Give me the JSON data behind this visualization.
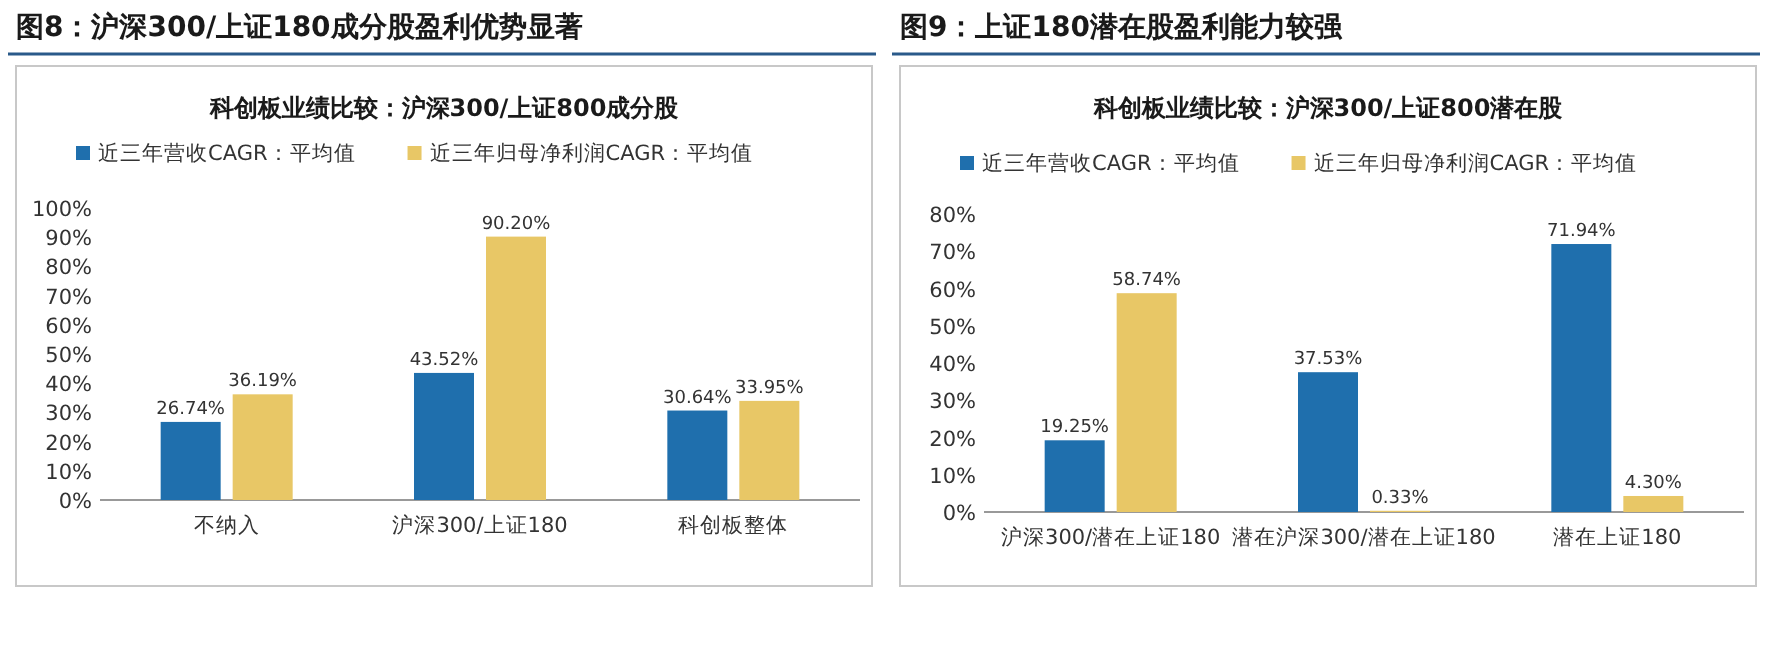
{
  "chart_data": [
    {
      "type": "bar",
      "title": "图8：沪深300/上证180成分股盈利优势显著",
      "subtitle": "科创板业绩比较：沪深300/上证800成分股",
      "categories": [
        "不纳入",
        "沪深300/上证180",
        "科创板整体"
      ],
      "series": [
        {
          "name": "近三年营收CAGR：平均值",
          "color": "#1f6fad",
          "values": [
            26.74,
            43.52,
            30.64
          ],
          "value_labels": [
            "26.74%",
            "43.52%",
            "30.64%"
          ]
        },
        {
          "name": "近三年归母净利润CAGR：平均值",
          "color": "#e8c766",
          "values": [
            36.19,
            90.2,
            33.95
          ],
          "value_labels": [
            "36.19%",
            "90.20%",
            "33.95%"
          ]
        }
      ],
      "ylim": [
        0,
        100
      ],
      "yticks": [
        {
          "value": 0,
          "label": "0%"
        },
        {
          "value": 10,
          "label": "10%"
        },
        {
          "value": 20,
          "label": "20%"
        },
        {
          "value": 30,
          "label": "30%"
        },
        {
          "value": 40,
          "label": "40%"
        },
        {
          "value": 50,
          "label": "50%"
        },
        {
          "value": 60,
          "label": "60%"
        },
        {
          "value": 70,
          "label": "70%"
        },
        {
          "value": 80,
          "label": "80%"
        },
        {
          "value": 90,
          "label": "90%"
        },
        {
          "value": 100,
          "label": "100%"
        }
      ],
      "legend": "top",
      "grid": false
    },
    {
      "type": "bar",
      "title": "图9：上证180潜在股盈利能力较强",
      "subtitle": "科创板业绩比较：沪深300/上证800潜在股",
      "categories": [
        "沪深300/潜在上证180",
        "潜在沪深300/潜在上证180",
        "潜在上证180"
      ],
      "series": [
        {
          "name": "近三年营收CAGR：平均值",
          "color": "#1f6fad",
          "values": [
            19.25,
            37.53,
            71.94
          ],
          "value_labels": [
            "19.25%",
            "37.53%",
            "71.94%"
          ]
        },
        {
          "name": "近三年归母净利润CAGR：平均值",
          "color": "#e8c766",
          "values": [
            58.74,
            0.33,
            4.3
          ],
          "value_labels": [
            "58.74%",
            "0.33%",
            "4.30%"
          ]
        }
      ],
      "ylim": [
        0,
        80
      ],
      "yticks": [
        {
          "value": 0,
          "label": "0%"
        },
        {
          "value": 10,
          "label": "10%"
        },
        {
          "value": 20,
          "label": "20%"
        },
        {
          "value": 30,
          "label": "30%"
        },
        {
          "value": 40,
          "label": "40%"
        },
        {
          "value": 50,
          "label": "50%"
        },
        {
          "value": 60,
          "label": "60%"
        },
        {
          "value": 70,
          "label": "70%"
        },
        {
          "value": 80,
          "label": "80%"
        }
      ],
      "legend": "top",
      "grid": false
    }
  ]
}
